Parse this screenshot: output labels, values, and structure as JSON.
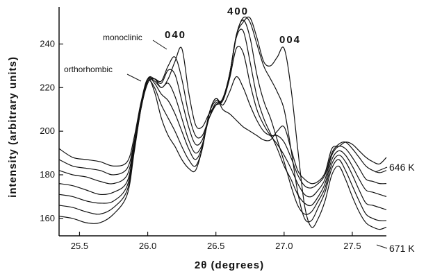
{
  "chart_data": {
    "type": "line",
    "title": "",
    "xlabel": "2θ  (degrees)",
    "ylabel": "intensity  (arbitrary  units)",
    "xlim": [
      25.35,
      27.75
    ],
    "ylim": [
      152,
      257
    ],
    "xticks": [
      "25.5",
      "26.0",
      "26.5",
      "27.0",
      "27.5"
    ],
    "yticks": [
      "160",
      "180",
      "200",
      "220",
      "240"
    ],
    "grid": false,
    "annotations": {
      "monoclinic": "monoclinic",
      "orthorhombic": "orthorhombic",
      "peak_040": "040",
      "peak_400": "400",
      "peak_004": "004",
      "temp_top": "646 K",
      "temp_bottom": "671 K"
    },
    "x": [
      25.35,
      25.45,
      25.55,
      25.65,
      25.75,
      25.85,
      25.9,
      25.95,
      26.0,
      26.05,
      26.1,
      26.15,
      26.2,
      26.25,
      26.3,
      26.35,
      26.4,
      26.45,
      26.5,
      26.55,
      26.6,
      26.65,
      26.7,
      26.75,
      26.8,
      26.85,
      26.9,
      26.95,
      27.0,
      27.05,
      27.1,
      27.15,
      27.2,
      27.25,
      27.3,
      27.35,
      27.4,
      27.45,
      27.5,
      27.55,
      27.6,
      27.65,
      27.7,
      27.75
    ],
    "series": [
      {
        "values": [
          192,
          188,
          187,
          186,
          184,
          186,
          197,
          213,
          224,
          218,
          206,
          198,
          193,
          187,
          183,
          182,
          192,
          208,
          215,
          210,
          208,
          205,
          202,
          200,
          198,
          196,
          196,
          200,
          202,
          192,
          182,
          178,
          176,
          177,
          181,
          192,
          193,
          195,
          194,
          191,
          188,
          186,
          185,
          188
        ]
      },
      {
        "values": [
          187,
          184,
          183,
          182,
          180,
          183,
          195,
          212,
          223,
          220,
          212,
          206,
          200,
          193,
          187,
          184,
          192,
          208,
          215,
          212,
          218,
          225,
          220,
          212,
          205,
          200,
          198,
          198,
          195,
          188,
          180,
          175,
          174,
          176,
          180,
          190,
          194,
          195,
          192,
          188,
          184,
          182,
          181,
          182
        ]
      },
      {
        "values": [
          182,
          180,
          179,
          177,
          176,
          180,
          194,
          212,
          224,
          222,
          217,
          214,
          208,
          200,
          192,
          187,
          193,
          208,
          214,
          214,
          224,
          238,
          236,
          222,
          210,
          203,
          198,
          194,
          189,
          183,
          176,
          171,
          170,
          173,
          178,
          189,
          193,
          192,
          188,
          183,
          178,
          177,
          176,
          176
        ]
      },
      {
        "values": [
          176,
          175,
          173,
          171,
          172,
          177,
          193,
          212,
          224,
          223,
          220,
          222,
          216,
          206,
          196,
          190,
          194,
          206,
          213,
          214,
          225,
          243,
          246,
          232,
          216,
          206,
          199,
          192,
          184,
          178,
          171,
          167,
          166,
          170,
          176,
          187,
          191,
          189,
          184,
          178,
          173,
          172,
          171,
          170
        ]
      },
      {
        "values": [
          171,
          170,
          168,
          167,
          168,
          175,
          192,
          211,
          224,
          224,
          222,
          228,
          226,
          214,
          202,
          194,
          196,
          206,
          212,
          215,
          226,
          244,
          251,
          243,
          226,
          214,
          206,
          196,
          186,
          175,
          166,
          162,
          163,
          168,
          174,
          185,
          189,
          186,
          180,
          173,
          167,
          166,
          165,
          164
        ]
      },
      {
        "values": [
          166,
          165,
          163,
          162,
          165,
          173,
          191,
          210,
          223,
          224,
          223,
          230,
          234,
          224,
          208,
          198,
          198,
          206,
          212,
          215,
          226,
          244,
          252,
          250,
          240,
          230,
          224,
          218,
          210,
          192,
          172,
          160,
          159,
          165,
          172,
          183,
          187,
          182,
          175,
          168,
          162,
          160,
          159,
          159
        ]
      },
      {
        "values": [
          161,
          160,
          158,
          158,
          162,
          171,
          190,
          210,
          222,
          224,
          220,
          224,
          232,
          238,
          218,
          203,
          202,
          208,
          212,
          214,
          226,
          244,
          250,
          252,
          243,
          232,
          230,
          234,
          238,
          220,
          192,
          166,
          156,
          160,
          168,
          180,
          184,
          178,
          170,
          163,
          158,
          156,
          155,
          156
        ]
      }
    ]
  }
}
